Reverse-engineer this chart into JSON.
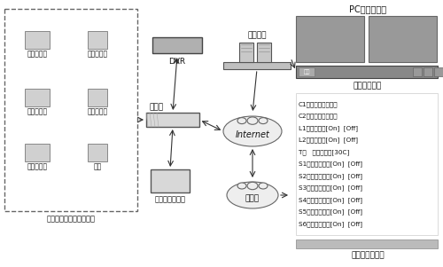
{
  "title_pc": "PC查看与控制",
  "title_phone": "手机查看与控制",
  "title_management": "综合家居管理",
  "label_switch": "交换机",
  "label_dvr": "DVR",
  "label_center": "中心平台",
  "label_internet": "Internet",
  "label_mobile": "移动网",
  "label_home_ctrl": "家电远程控制器",
  "label_group": "摄像机、家电与传感器组",
  "devices_left_col1": [
    "球形摄像机",
    "枪形摄像机",
    "红外传感器"
  ],
  "devices_left_col2": [
    "门磁传感器",
    "窗磁传感器",
    "灯具"
  ],
  "mgmt_lines": [
    "C1：门外枪形摄像机",
    "C2：客厅球形摄像机",
    "L1：厨房吊灯[On]  [Off]",
    "L2：客厅吊灯[On]  [Off]",
    "T：   温度传感器[30C]",
    "S1：红外传感器[On]  [Off]",
    "S2：门磁传感器[On]  [Off]",
    "S3：窗磁传感器[On]  [Off]",
    "S4：火焰传感器[On]  [Off]",
    "S5：烟雾传感器[On]  [Off]",
    "S6：煤气传感器[On]  [Off]"
  ],
  "figsize": [
    5.0,
    3.01
  ],
  "dpi": 100
}
